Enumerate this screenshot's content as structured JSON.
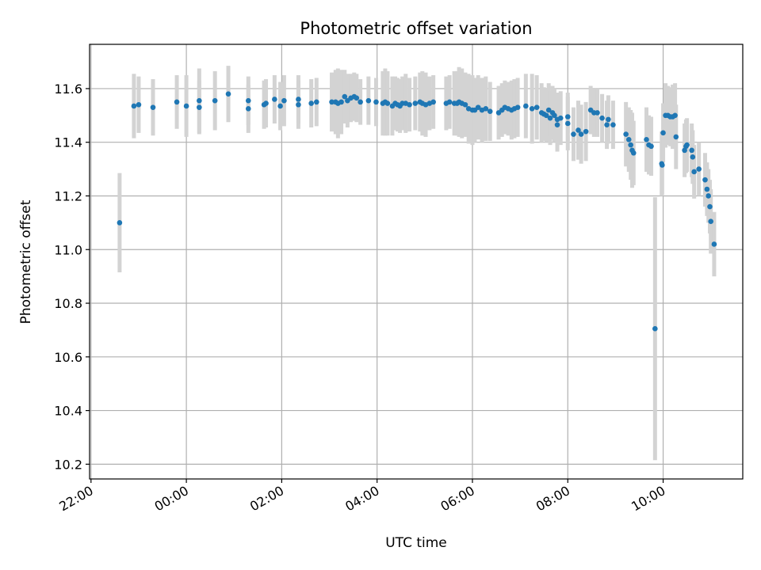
{
  "chart_data": {
    "type": "scatter",
    "title": "Photometric offset variation",
    "xlabel": "UTC time",
    "ylabel": "Photometric offset",
    "x_unit": "hours",
    "x_tick_values": [
      -2,
      0,
      2,
      4,
      6,
      8,
      10
    ],
    "x_tick_labels": [
      "22:00",
      "00:00",
      "02:00",
      "04:00",
      "06:00",
      "08:00",
      "10:00"
    ],
    "y_ticks": [
      10.2,
      10.4,
      10.6,
      10.8,
      11.0,
      11.2,
      11.4,
      11.6
    ],
    "y_tick_labels": [
      "10.2",
      "10.4",
      "10.6",
      "10.8",
      "11.0",
      "11.2",
      "11.4",
      "11.6"
    ],
    "xlim": [
      -2.03,
      11.67
    ],
    "ylim": [
      10.145,
      11.765
    ],
    "grid": true,
    "colors": {
      "points": "#1f77b4",
      "errorbars": "#d3d3d3",
      "grid": "#b0b0b0"
    },
    "series": [
      {
        "points": [
          [
            -1.4,
            11.1,
            0.185
          ],
          [
            -1.1,
            11.535,
            0.12
          ],
          [
            -1.0,
            11.54,
            0.105
          ],
          [
            -0.7,
            11.53,
            0.105
          ],
          [
            -0.2,
            11.55,
            0.1
          ],
          [
            0.0,
            11.535,
            0.115
          ],
          [
            0.27,
            11.555,
            0.12
          ],
          [
            0.27,
            11.53,
            0.1
          ],
          [
            0.6,
            11.555,
            0.11
          ],
          [
            0.88,
            11.58,
            0.105
          ],
          [
            1.3,
            11.555,
            0.09
          ],
          [
            1.3,
            11.525,
            0.09
          ],
          [
            1.63,
            11.54,
            0.09
          ],
          [
            1.67,
            11.545,
            0.09
          ],
          [
            1.85,
            11.56,
            0.09
          ],
          [
            1.97,
            11.535,
            0.09
          ],
          [
            2.05,
            11.555,
            0.095
          ],
          [
            2.35,
            11.56,
            0.09
          ],
          [
            2.35,
            11.54,
            0.09
          ],
          [
            2.62,
            11.545,
            0.09
          ],
          [
            2.73,
            11.55,
            0.09
          ],
          [
            3.05,
            11.55,
            0.11
          ],
          [
            3.13,
            11.55,
            0.12
          ],
          [
            3.18,
            11.545,
            0.13
          ],
          [
            3.25,
            11.55,
            0.12
          ],
          [
            3.32,
            11.57,
            0.1
          ],
          [
            3.38,
            11.555,
            0.1
          ],
          [
            3.45,
            11.565,
            0.09
          ],
          [
            3.52,
            11.57,
            0.09
          ],
          [
            3.57,
            11.565,
            0.09
          ],
          [
            3.65,
            11.55,
            0.085
          ],
          [
            3.82,
            11.555,
            0.09
          ],
          [
            3.98,
            11.55,
            0.09
          ],
          [
            4.12,
            11.545,
            0.12
          ],
          [
            4.17,
            11.55,
            0.125
          ],
          [
            4.22,
            11.545,
            0.12
          ],
          [
            4.32,
            11.535,
            0.11
          ],
          [
            4.38,
            11.545,
            0.1
          ],
          [
            4.43,
            11.54,
            0.1
          ],
          [
            4.48,
            11.535,
            0.1
          ],
          [
            4.53,
            11.545,
            0.1
          ],
          [
            4.6,
            11.545,
            0.11
          ],
          [
            4.68,
            11.54,
            0.1
          ],
          [
            4.8,
            11.545,
            0.1
          ],
          [
            4.9,
            11.55,
            0.11
          ],
          [
            4.95,
            11.545,
            0.12
          ],
          [
            5.02,
            11.54,
            0.12
          ],
          [
            5.1,
            11.545,
            0.1
          ],
          [
            5.18,
            11.55,
            0.1
          ],
          [
            5.45,
            11.545,
            0.1
          ],
          [
            5.52,
            11.55,
            0.1
          ],
          [
            5.62,
            11.545,
            0.12
          ],
          [
            5.68,
            11.545,
            0.12
          ],
          [
            5.72,
            11.55,
            0.13
          ],
          [
            5.78,
            11.545,
            0.13
          ],
          [
            5.85,
            11.54,
            0.12
          ],
          [
            5.92,
            11.525,
            0.13
          ],
          [
            6.0,
            11.52,
            0.13
          ],
          [
            6.05,
            11.52,
            0.12
          ],
          [
            6.12,
            11.53,
            0.12
          ],
          [
            6.2,
            11.52,
            0.12
          ],
          [
            6.28,
            11.525,
            0.12
          ],
          [
            6.37,
            11.515,
            0.11
          ],
          [
            6.55,
            11.51,
            0.1
          ],
          [
            6.62,
            11.52,
            0.1
          ],
          [
            6.68,
            11.53,
            0.1
          ],
          [
            6.75,
            11.525,
            0.1
          ],
          [
            6.82,
            11.52,
            0.11
          ],
          [
            6.88,
            11.525,
            0.11
          ],
          [
            6.95,
            11.53,
            0.11
          ],
          [
            7.12,
            11.535,
            0.12
          ],
          [
            7.25,
            11.525,
            0.13
          ],
          [
            7.35,
            11.53,
            0.12
          ],
          [
            7.45,
            11.51,
            0.11
          ],
          [
            7.5,
            11.505,
            0.1
          ],
          [
            7.55,
            11.5,
            0.1
          ],
          [
            7.6,
            11.52,
            0.1
          ],
          [
            7.63,
            11.49,
            0.1
          ],
          [
            7.68,
            11.51,
            0.1
          ],
          [
            7.72,
            11.5,
            0.1
          ],
          [
            7.78,
            11.485,
            0.1
          ],
          [
            7.78,
            11.465,
            0.1
          ],
          [
            7.85,
            11.49,
            0.1
          ],
          [
            8.0,
            11.495,
            0.09
          ],
          [
            8.0,
            11.47,
            0.1
          ],
          [
            8.12,
            11.43,
            0.1
          ],
          [
            8.22,
            11.445,
            0.11
          ],
          [
            8.28,
            11.43,
            0.11
          ],
          [
            8.38,
            11.44,
            0.11
          ],
          [
            8.48,
            11.52,
            0.09
          ],
          [
            8.55,
            11.51,
            0.09
          ],
          [
            8.62,
            11.51,
            0.09
          ],
          [
            8.72,
            11.49,
            0.09
          ],
          [
            8.82,
            11.465,
            0.09
          ],
          [
            8.85,
            11.485,
            0.09
          ],
          [
            8.95,
            11.465,
            0.09
          ],
          [
            9.22,
            11.43,
            0.12
          ],
          [
            9.28,
            11.41,
            0.12
          ],
          [
            9.32,
            11.39,
            0.13
          ],
          [
            9.35,
            11.37,
            0.14
          ],
          [
            9.38,
            11.36,
            0.12
          ],
          [
            9.65,
            11.41,
            0.12
          ],
          [
            9.7,
            11.39,
            0.11
          ],
          [
            9.75,
            11.385,
            0.11
          ],
          [
            9.83,
            10.705,
            0.49
          ],
          [
            9.97,
            11.32,
            0.12
          ],
          [
            9.98,
            11.315,
            0.11
          ],
          [
            10.0,
            11.435,
            0.11
          ],
          [
            10.05,
            11.5,
            0.12
          ],
          [
            10.1,
            11.5,
            0.11
          ],
          [
            10.15,
            11.495,
            0.11
          ],
          [
            10.2,
            11.495,
            0.12
          ],
          [
            10.25,
            11.5,
            0.12
          ],
          [
            10.27,
            11.42,
            0.12
          ],
          [
            10.45,
            11.37,
            0.1
          ],
          [
            10.48,
            11.385,
            0.1
          ],
          [
            10.5,
            11.39,
            0.1
          ],
          [
            10.6,
            11.37,
            0.1
          ],
          [
            10.62,
            11.345,
            0.1
          ],
          [
            10.65,
            11.29,
            0.1
          ],
          [
            10.75,
            11.3,
            0.1
          ],
          [
            10.88,
            11.26,
            0.1
          ],
          [
            10.92,
            11.225,
            0.1
          ],
          [
            10.95,
            11.2,
            0.1
          ],
          [
            10.98,
            11.16,
            0.1
          ],
          [
            11.0,
            11.105,
            0.12
          ],
          [
            11.07,
            11.02,
            0.12
          ]
        ]
      }
    ]
  }
}
